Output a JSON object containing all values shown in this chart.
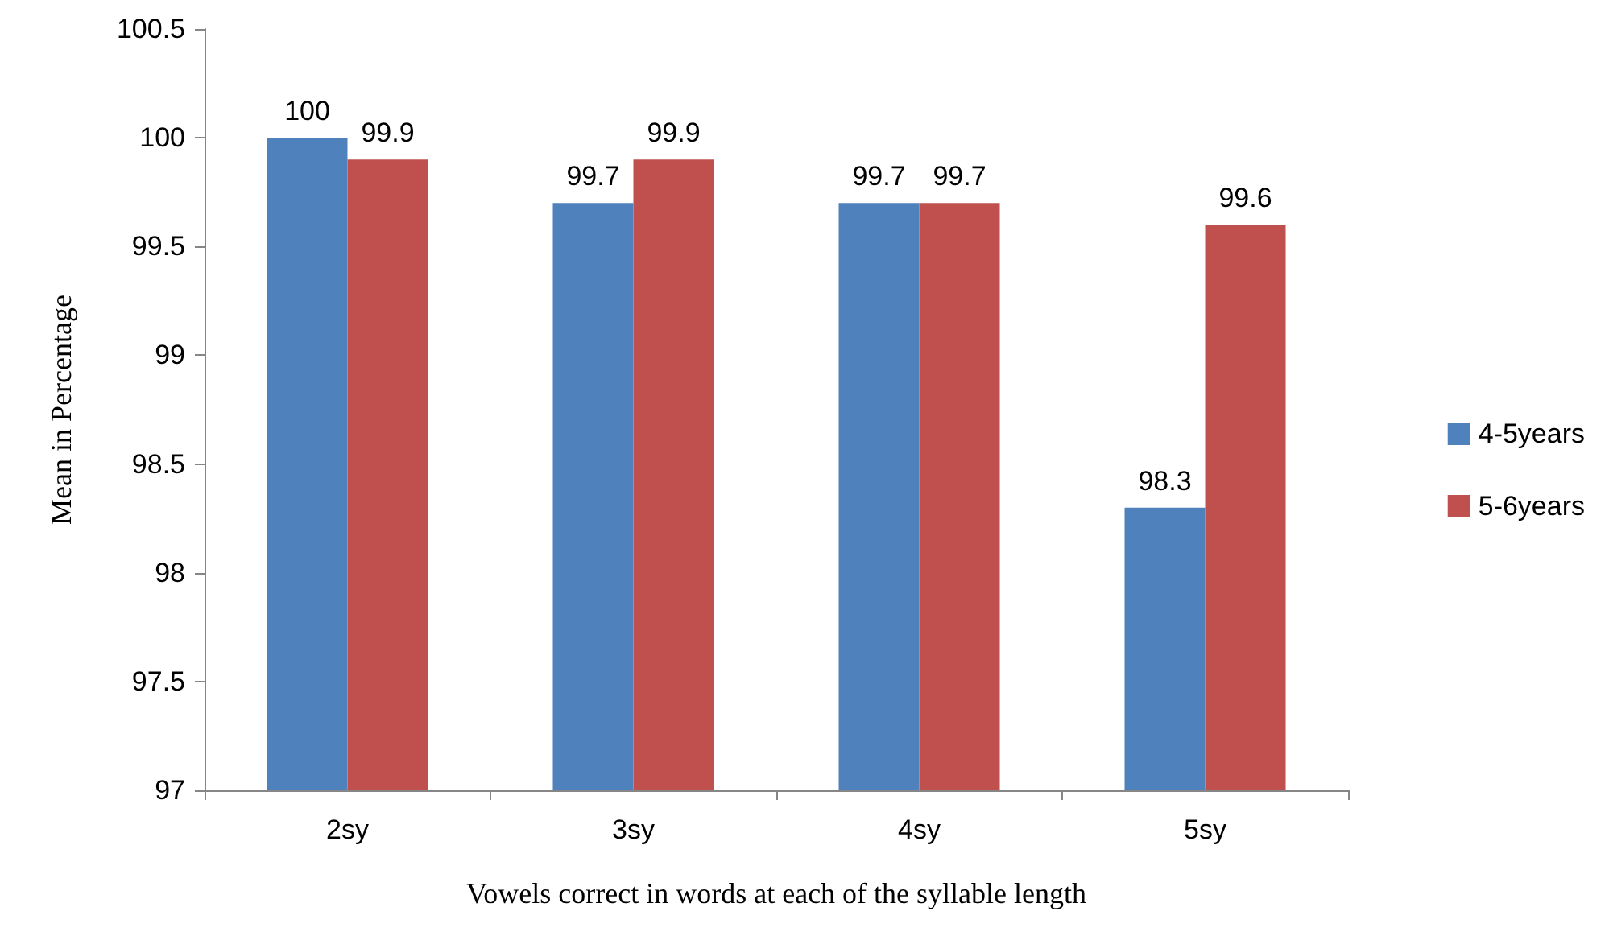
{
  "chart_data": {
    "type": "bar",
    "xlabel": "Vowels correct in words at each of the syllable length",
    "ylabel": "Mean in Percentage",
    "categories": [
      "2sy",
      "3sy",
      "4sy",
      "5sy"
    ],
    "series": [
      {
        "name": "4-5years",
        "color": "#4f81bd",
        "values": [
          100,
          99.7,
          99.7,
          98.3
        ]
      },
      {
        "name": "5-6years",
        "color": "#c0504d",
        "values": [
          99.9,
          99.9,
          99.7,
          99.6
        ]
      }
    ],
    "ylim": [
      97,
      100.5
    ],
    "yticks": [
      97,
      97.5,
      98,
      98.5,
      99,
      99.5,
      100,
      100.5
    ],
    "grid": false,
    "legend": "right",
    "data_labels": true
  }
}
